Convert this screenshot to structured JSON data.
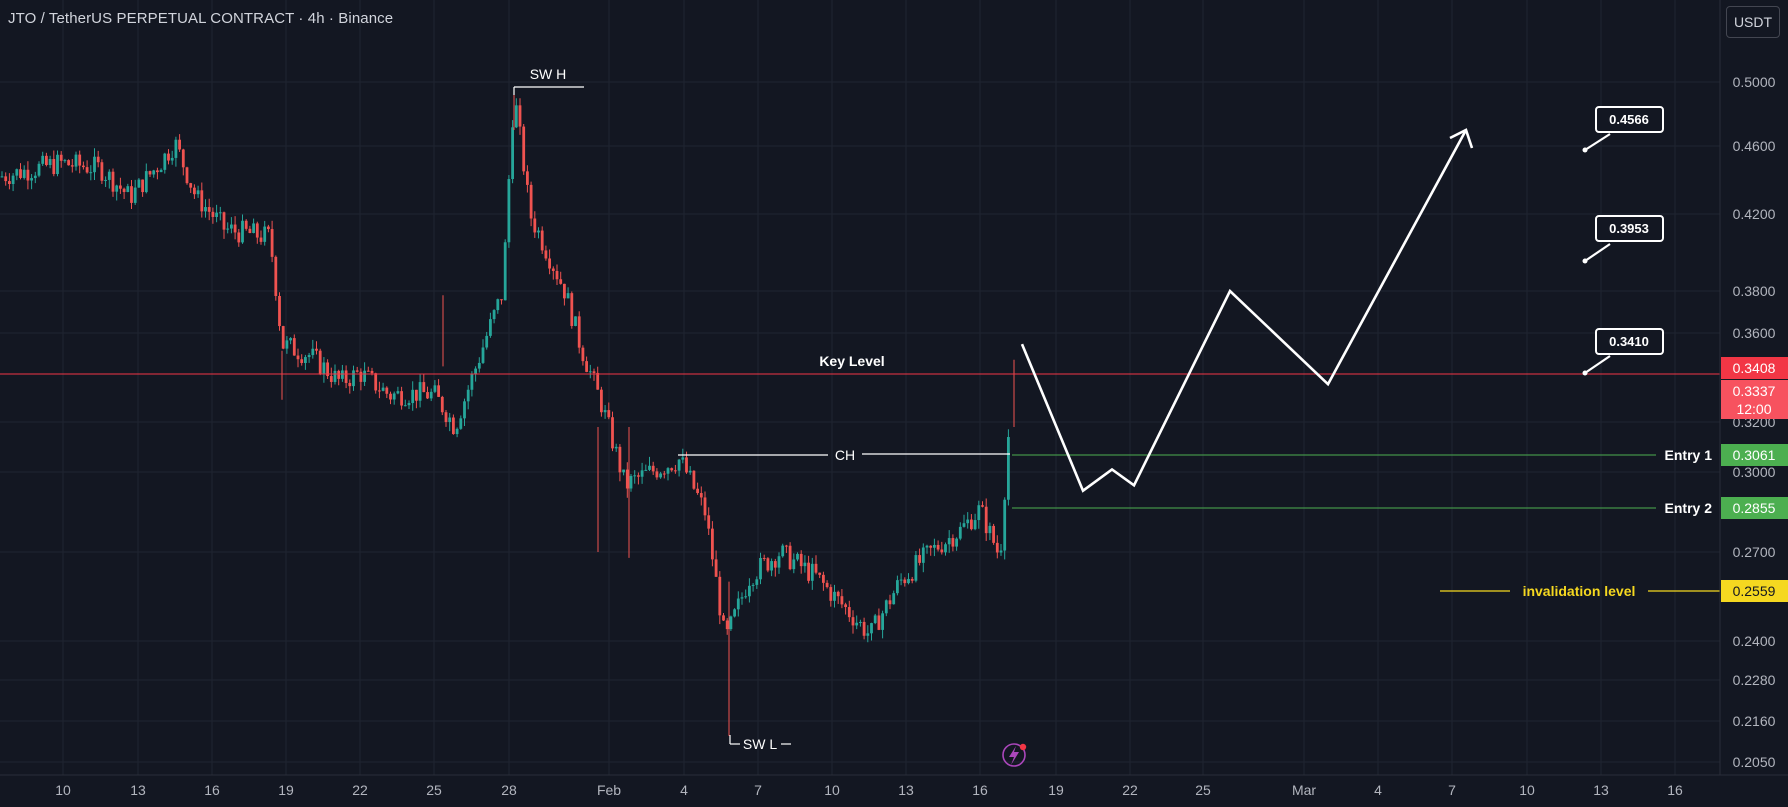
{
  "header": {
    "title": "JTO / TetherUS PERPETUAL CONTRACT · 4h · Binance",
    "currency_button": "USDT"
  },
  "colors": {
    "background": "#131722",
    "grid": "#1f2431",
    "up": "#26a69a",
    "down": "#ef5350",
    "axis_text": "#b2b5be",
    "white": "#ffffff",
    "key_level": "#f23645",
    "entry": "#4caf50",
    "invalidation": "#f5d820"
  },
  "chart_data": {
    "type": "candlestick",
    "y_axis": {
      "ticks": [
        "0.5000",
        "0.4600",
        "0.4200",
        "0.3800",
        "0.3600",
        "0.3200",
        "0.3000",
        "0.2700",
        "0.2400",
        "0.2280",
        "0.2160",
        "0.2050"
      ]
    },
    "x_axis": {
      "ticks": [
        "10",
        "13",
        "16",
        "19",
        "22",
        "25",
        "28",
        "Feb",
        "4",
        "7",
        "10",
        "13",
        "16",
        "19",
        "22",
        "25",
        "Mar",
        "4",
        "7",
        "10",
        "13",
        "16"
      ]
    },
    "price_marks": [
      {
        "label": "0.3408",
        "kind": "key"
      },
      {
        "label": "0.3337",
        "sublabel": "12:00",
        "kind": "last"
      },
      {
        "label": "0.3061",
        "kind": "entry"
      },
      {
        "label": "0.2855",
        "kind": "entry"
      },
      {
        "label": "0.2559",
        "kind": "invalidation"
      }
    ],
    "annotations": {
      "swing_high": "SW H",
      "swing_low": "SW L",
      "change": "CH",
      "key_level": "Key Level",
      "entry1": "Entry 1",
      "entry2": "Entry 2",
      "invalidation": "invalidation level"
    },
    "targets": [
      "0.4566",
      "0.3953",
      "0.3410"
    ],
    "path": [
      {
        "date": "Jan 9",
        "close": 0.442
      },
      {
        "date": "Jan 11",
        "close": 0.45
      },
      {
        "date": "Jan 12",
        "close": 0.447
      },
      {
        "date": "Jan 13",
        "close": 0.43
      },
      {
        "date": "Jan 14",
        "close": 0.45
      },
      {
        "date": "Jan 15",
        "close": 0.462
      },
      {
        "date": "Jan 16",
        "close": 0.43
      },
      {
        "date": "Jan 17",
        "close": 0.412
      },
      {
        "date": "Jan 18",
        "close": 0.408
      },
      {
        "date": "Jan 19",
        "close": 0.355
      },
      {
        "date": "Jan 20",
        "close": 0.35
      },
      {
        "date": "Jan 21",
        "close": 0.338
      },
      {
        "date": "Jan 22",
        "close": 0.342
      },
      {
        "date": "Jan 23",
        "close": 0.332
      },
      {
        "date": "Jan 24",
        "close": 0.333
      },
      {
        "date": "Jan 25",
        "close": 0.332
      },
      {
        "date": "Jan 26",
        "close": 0.318
      },
      {
        "date": "Jan 27",
        "close": 0.35
      },
      {
        "date": "Jan 28",
        "close": 0.38
      },
      {
        "date": "Jan 28.5",
        "close": 0.493
      },
      {
        "date": "Jan 29",
        "close": 0.42
      },
      {
        "date": "Jan 30",
        "close": 0.38
      },
      {
        "date": "Jan 31",
        "close": 0.355
      },
      {
        "date": "Feb 1",
        "close": 0.33
      },
      {
        "date": "Feb 2",
        "close": 0.295
      },
      {
        "date": "Feb 3",
        "close": 0.3
      },
      {
        "date": "Feb 4",
        "close": 0.305
      },
      {
        "date": "Feb 5",
        "close": 0.285
      },
      {
        "date": "Feb 6",
        "close": 0.24
      },
      {
        "date": "Feb 7",
        "close": 0.262
      },
      {
        "date": "Feb 8",
        "close": 0.27
      },
      {
        "date": "Feb 9",
        "close": 0.262
      },
      {
        "date": "Feb 10",
        "close": 0.253
      },
      {
        "date": "Feb 11",
        "close": 0.242
      },
      {
        "date": "Feb 12",
        "close": 0.26
      },
      {
        "date": "Feb 13",
        "close": 0.27
      },
      {
        "date": "Feb 14",
        "close": 0.278
      },
      {
        "date": "Feb 15",
        "close": 0.286
      },
      {
        "date": "Feb 16",
        "close": 0.268
      },
      {
        "date": "Feb 17",
        "close": 0.334
      }
    ],
    "projection": [
      0.355,
      0.293,
      0.301,
      0.295,
      0.38,
      0.337,
      0.47
    ]
  }
}
